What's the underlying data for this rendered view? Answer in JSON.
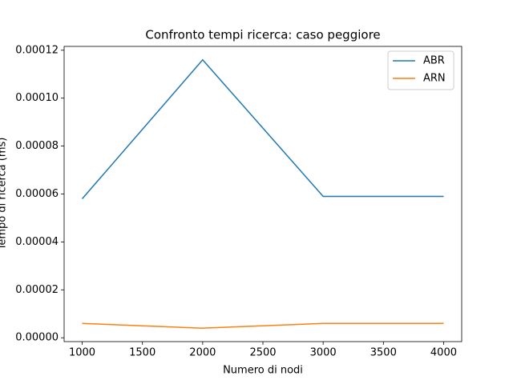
{
  "chart_data": {
    "type": "line",
    "title": "Confronto tempi ricerca: caso peggiore",
    "x_label": "Numero di nodi",
    "y_label": "Tempo di ricerca (ms)",
    "x": [
      1000,
      2000,
      3000,
      4000
    ],
    "series": [
      {
        "name": "ABR",
        "color": "#1f77b4",
        "values": [
          5.8e-05,
          0.000116,
          5.9e-05,
          5.9e-05
        ]
      },
      {
        "name": "ARN",
        "color": "#ff7f0e",
        "values": [
          6e-06,
          4e-06,
          6e-06,
          6e-06
        ]
      }
    ],
    "xlim": [
      850,
      4150
    ],
    "xticks": [
      1000,
      1500,
      2000,
      2500,
      3000,
      3500,
      4000
    ],
    "ylim": [
      -1.6e-06,
      0.0001216
    ],
    "yticks": [
      {
        "value": 0,
        "label": "0.00000"
      },
      {
        "value": 2e-05,
        "label": "0.00002"
      },
      {
        "value": 4e-05,
        "label": "0.00004"
      },
      {
        "value": 6e-05,
        "label": "0.00006"
      },
      {
        "value": 8e-05,
        "label": "0.00008"
      },
      {
        "value": 0.0001,
        "label": "0.00010"
      },
      {
        "value": 0.00012,
        "label": "0.00012"
      }
    ],
    "legend": "upper right",
    "grid": false
  }
}
